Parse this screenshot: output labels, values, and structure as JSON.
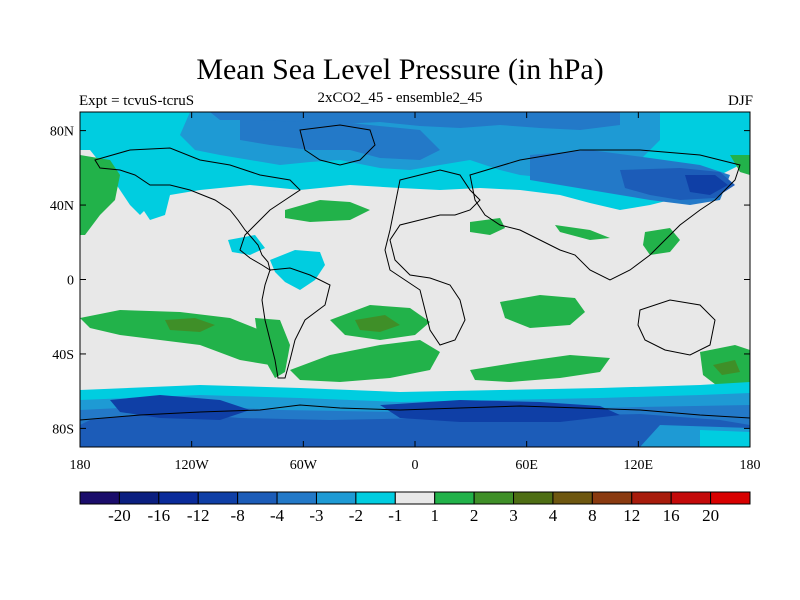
{
  "title": "Mean Sea Level Pressure (in hPa)",
  "left_label": "Expt = tcvuS-tcruS",
  "center_label": "2xCO2_45 - ensemble2_45",
  "right_label": "DJF",
  "lat_ticks": [
    "80N",
    "40N",
    "0",
    "40S",
    "80S"
  ],
  "lon_ticks": [
    "180",
    "120W",
    "60W",
    "0",
    "60E",
    "120E",
    "180"
  ],
  "colorbar": {
    "colors": [
      "#1b0d6b",
      "#0b1f80",
      "#0a2b9a",
      "#0f3fa6",
      "#1c5cb8",
      "#2379c8",
      "#1e9ad4",
      "#00cde0",
      "#e8e8e8",
      "#22b24a",
      "#3f8f28",
      "#4e6e14",
      "#6e5710",
      "#8a3a10",
      "#a81c0c",
      "#c40a0a",
      "#d80000"
    ],
    "labels": [
      "-20",
      "-16",
      "-12",
      "-8",
      "-4",
      "-3",
      "-2",
      "-1",
      "1",
      "2",
      "3",
      "4",
      "8",
      "12",
      "16",
      "20"
    ]
  },
  "fills": {
    "c_m3": "#1c5cb8",
    "c_m2": "#2379c8",
    "c_m1": "#00cde0",
    "c_m1b": "#1e9ad4",
    "c_zero": "#e8e8e8",
    "c_p1": "#22b24a",
    "c_p2": "#3f8f28",
    "c_m4": "#0f3fa6",
    "land": "#000000"
  }
}
